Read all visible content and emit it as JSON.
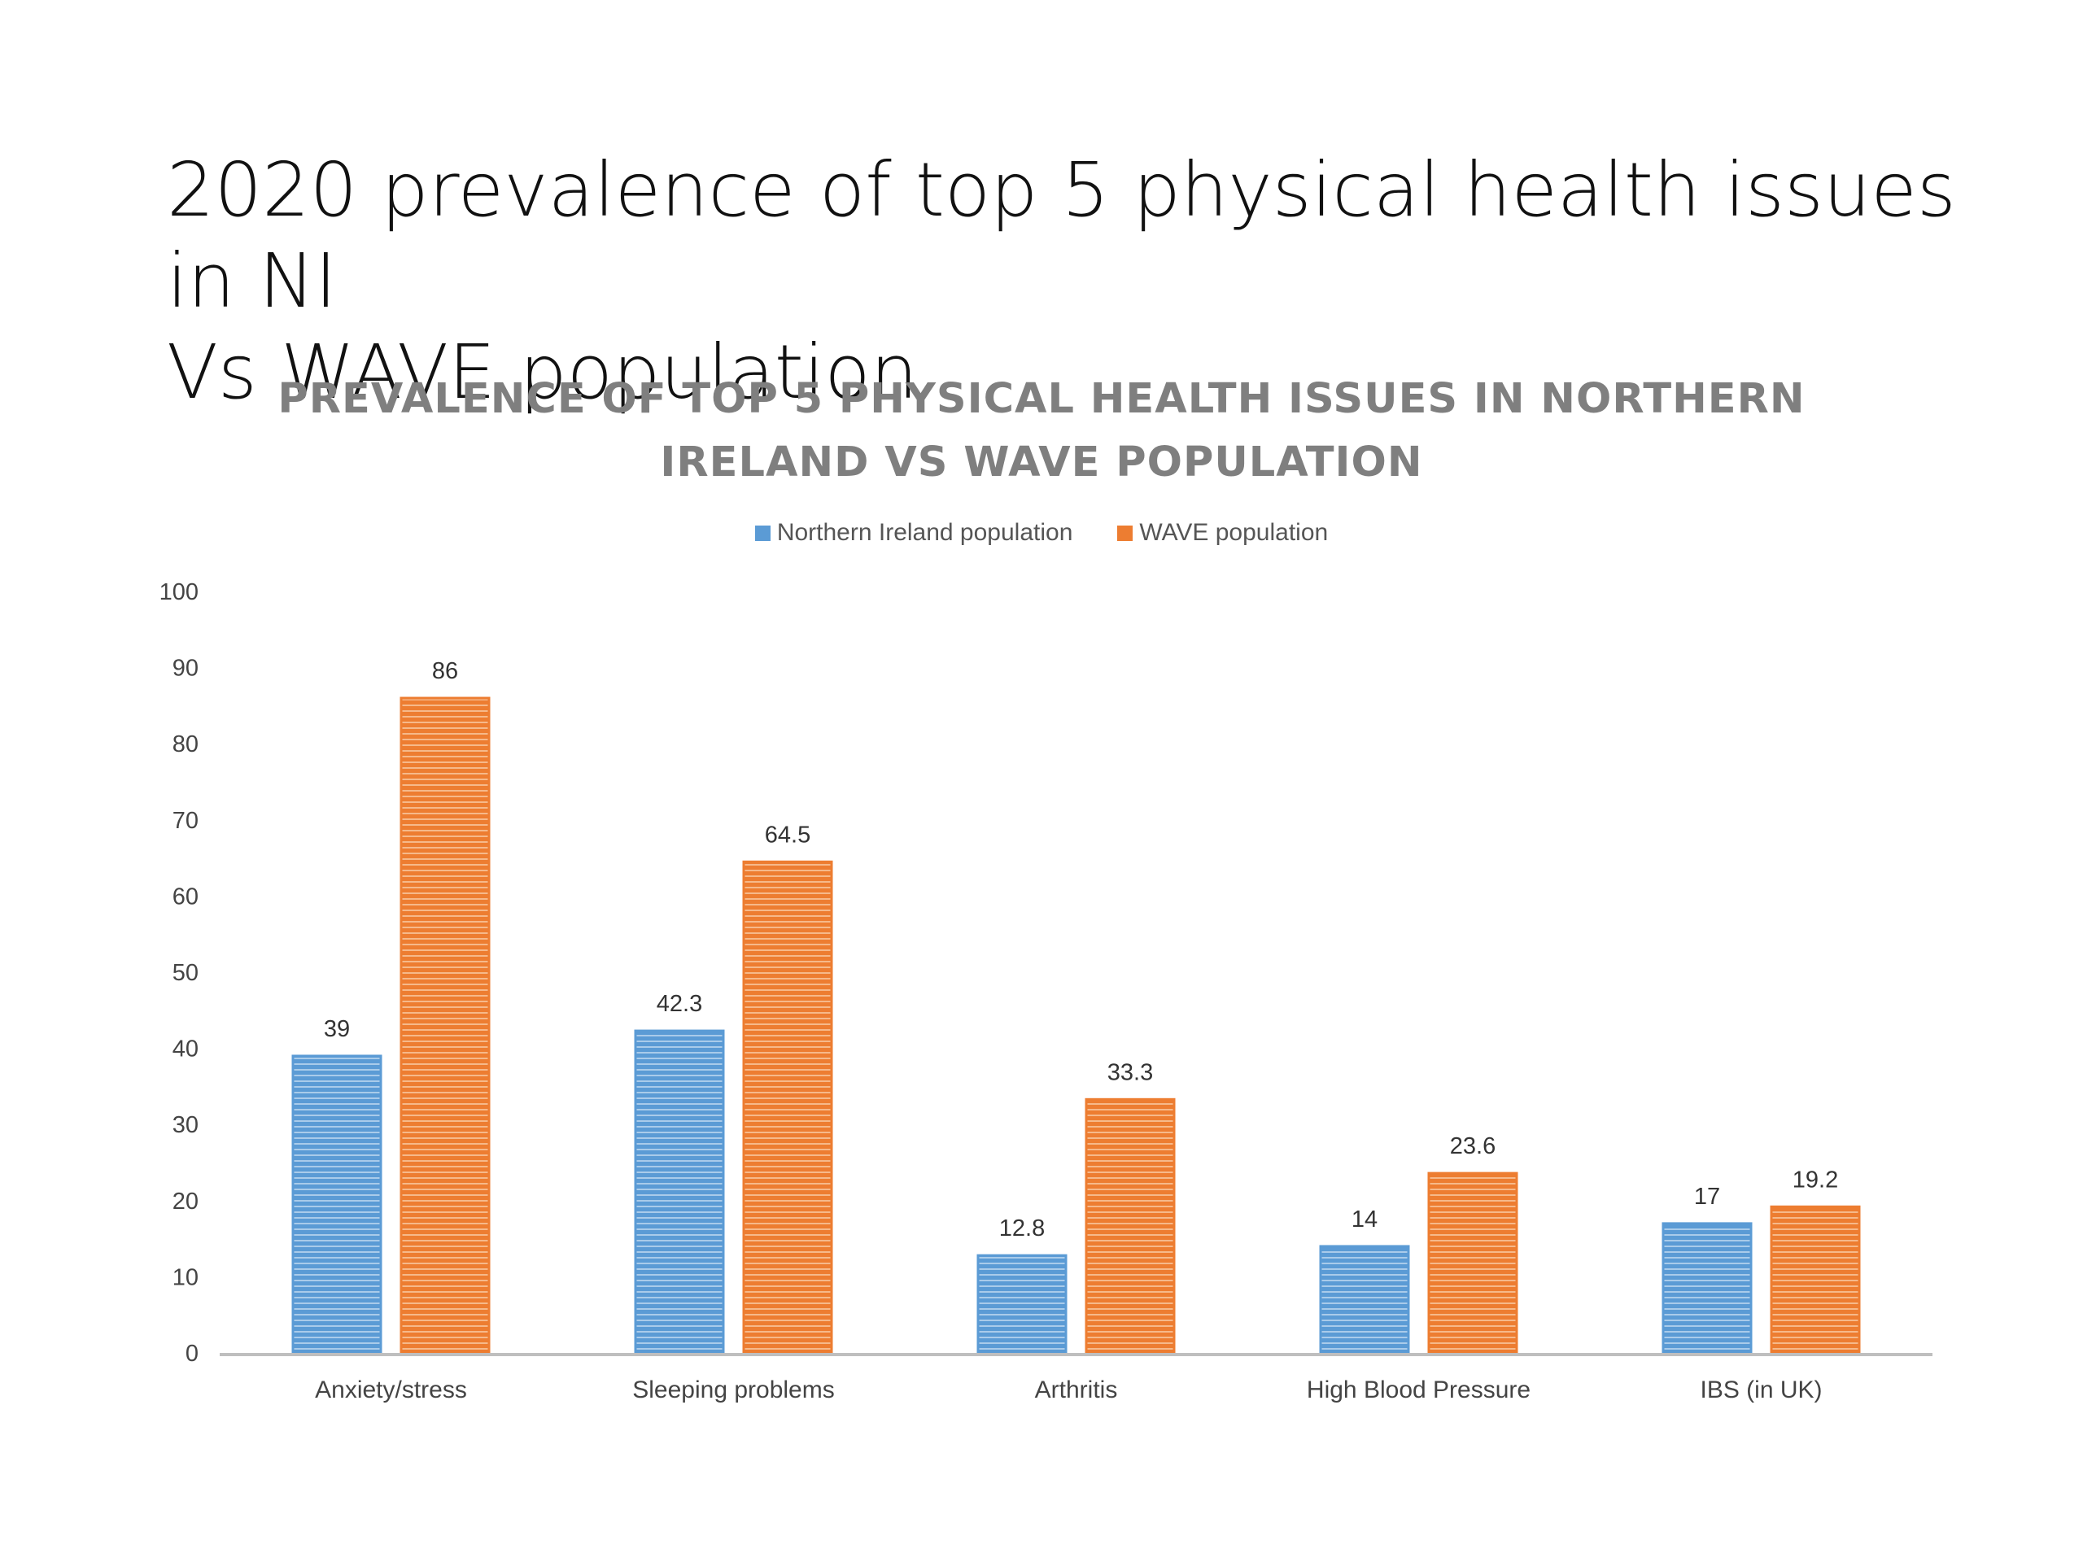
{
  "slide": {
    "title_line1": "2020 prevalence of top 5 physical health issues in NI",
    "title_line2": "Vs WAVE population"
  },
  "chart_data": {
    "type": "bar",
    "title": "PREVALENCE OF TOP 5 PHYSICAL HEALTH ISSUES IN NORTHERN IRELAND VS WAVE POPULATION",
    "title_line1": "PREVALENCE OF TOP 5 PHYSICAL HEALTH ISSUES IN NORTHERN",
    "title_line2": "IRELAND VS WAVE POPULATION",
    "categories": [
      "Anxiety/stress",
      "Sleeping problems",
      "Arthritis",
      "High Blood Pressure",
      "IBS (in UK)"
    ],
    "series": [
      {
        "name": "Northern Ireland population",
        "values": [
          39,
          42.3,
          12.8,
          14,
          17
        ],
        "color": "#5b9bd5"
      },
      {
        "name": "WAVE population",
        "values": [
          86,
          64.5,
          33.3,
          23.6,
          19.2
        ],
        "color": "#ed7d31"
      }
    ],
    "xlabel": "",
    "ylabel": "",
    "ylim": [
      0,
      100
    ],
    "yticks": [
      0,
      10,
      20,
      30,
      40,
      50,
      60,
      70,
      80,
      90,
      100
    ],
    "legend": "top",
    "grid": false,
    "data_labels": true
  }
}
